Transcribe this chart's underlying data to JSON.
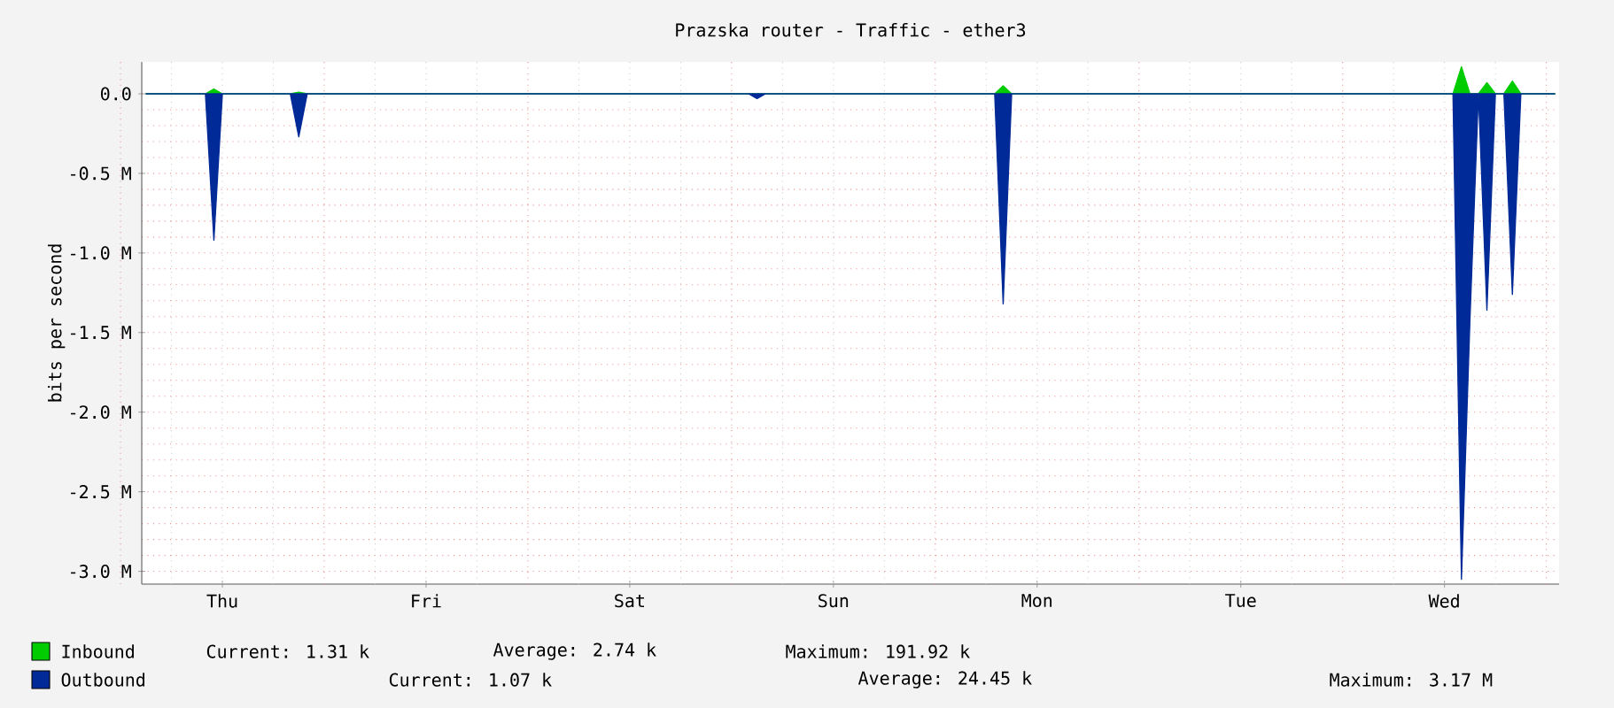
{
  "chart_data": {
    "type": "area",
    "title": "Prazska router - Traffic - ether3",
    "ylabel": "bits per second",
    "categories": [
      null,
      null,
      null,
      null,
      null,
      null,
      null,
      null,
      null,
      "Thu",
      null,
      null,
      null,
      null,
      null,
      null,
      null,
      null,
      null,
      null,
      null,
      null,
      null,
      null,
      null,
      null,
      null,
      null,
      null,
      null,
      null,
      null,
      null,
      "Fri",
      null,
      null,
      null,
      null,
      null,
      null,
      null,
      null,
      null,
      null,
      null,
      null,
      null,
      null,
      null,
      null,
      null,
      null,
      null,
      null,
      null,
      null,
      null,
      "Sat",
      null,
      null,
      null,
      null,
      null,
      null,
      null,
      null,
      null,
      null,
      null,
      null,
      null,
      null,
      null,
      null,
      null,
      null,
      null,
      null,
      null,
      null,
      null,
      "Sun",
      null,
      null,
      null,
      null,
      null,
      null,
      null,
      null,
      null,
      null,
      null,
      null,
      null,
      null,
      null,
      null,
      null,
      null,
      null,
      null,
      null,
      null,
      null,
      "Mon",
      null,
      null,
      null,
      null,
      null,
      null,
      null,
      null,
      null,
      null,
      null,
      null,
      null,
      null,
      null,
      null,
      null,
      null,
      null,
      null,
      null,
      null,
      null,
      "Tue",
      null,
      null,
      null,
      null,
      null,
      null,
      null,
      null,
      null,
      null,
      null,
      null,
      null,
      null,
      null,
      null,
      null,
      null,
      null,
      null,
      null,
      null,
      null,
      "Wed",
      null,
      null,
      null,
      null,
      null,
      null,
      null,
      null,
      null,
      null,
      null,
      null,
      null
    ],
    "ylim": [
      -3080000,
      200000
    ],
    "yticks": [
      {
        "value": 0,
        "label": "0.0"
      },
      {
        "value": -500000,
        "label": "-0.5 M"
      },
      {
        "value": -1000000,
        "label": "-1.0 M"
      },
      {
        "value": -1500000,
        "label": "-1.5 M"
      },
      {
        "value": -2000000,
        "label": "-2.0 M"
      },
      {
        "value": -2500000,
        "label": "-2.5 M"
      },
      {
        "value": -3000000,
        "label": "-3.0 M"
      }
    ],
    "grid": true,
    "legend": "bottom left",
    "series": [
      {
        "name": "Inbound",
        "color": "#00cc00",
        "values": [
          0,
          0,
          0,
          0,
          0,
          0,
          0,
          0,
          30000,
          0,
          0,
          0,
          0,
          0,
          0,
          0,
          0,
          0,
          10000,
          0,
          0,
          0,
          0,
          0,
          0,
          0,
          0,
          0,
          0,
          0,
          0,
          0,
          0,
          0,
          0,
          0,
          0,
          0,
          0,
          0,
          0,
          0,
          0,
          0,
          0,
          0,
          0,
          0,
          0,
          0,
          0,
          0,
          0,
          0,
          0,
          0,
          0,
          0,
          0,
          0,
          0,
          0,
          0,
          0,
          0,
          0,
          0,
          0,
          0,
          0,
          0,
          0,
          0,
          0,
          0,
          0,
          0,
          0,
          0,
          0,
          0,
          0,
          0,
          0,
          0,
          0,
          0,
          0,
          0,
          0,
          0,
          0,
          0,
          0,
          0,
          0,
          0,
          0,
          0,
          0,
          0,
          50000,
          0,
          0,
          0,
          0,
          0,
          0,
          0,
          0,
          0,
          0,
          0,
          0,
          0,
          0,
          0,
          0,
          0,
          0,
          0,
          0,
          0,
          0,
          0,
          0,
          0,
          0,
          0,
          0,
          0,
          0,
          0,
          0,
          0,
          0,
          0,
          0,
          0,
          0,
          0,
          0,
          0,
          0,
          0,
          0,
          0,
          0,
          0,
          0,
          0,
          0,
          0,
          0,
          0,
          170000,
          0,
          0,
          70000,
          0,
          0,
          80000,
          0,
          0,
          0,
          0,
          0
        ]
      },
      {
        "name": "Outbound",
        "color": "#002a97",
        "values": [
          0,
          0,
          0,
          0,
          0,
          0,
          0,
          0,
          -920000,
          0,
          0,
          0,
          0,
          0,
          0,
          0,
          0,
          0,
          -270000,
          0,
          0,
          0,
          0,
          0,
          0,
          0,
          0,
          0,
          0,
          0,
          0,
          0,
          0,
          0,
          0,
          0,
          0,
          0,
          0,
          0,
          0,
          0,
          0,
          0,
          0,
          0,
          0,
          0,
          0,
          0,
          0,
          0,
          0,
          0,
          0,
          0,
          0,
          0,
          0,
          0,
          0,
          0,
          0,
          0,
          0,
          0,
          0,
          0,
          0,
          0,
          0,
          0,
          -30000,
          0,
          0,
          0,
          0,
          0,
          0,
          0,
          0,
          0,
          0,
          0,
          0,
          0,
          0,
          0,
          0,
          0,
          0,
          0,
          0,
          0,
          0,
          0,
          0,
          0,
          0,
          0,
          0,
          -1320000,
          0,
          0,
          0,
          0,
          0,
          0,
          0,
          0,
          0,
          0,
          0,
          0,
          0,
          0,
          0,
          0,
          0,
          0,
          0,
          0,
          0,
          0,
          0,
          0,
          0,
          0,
          0,
          0,
          0,
          0,
          0,
          0,
          0,
          0,
          0,
          0,
          0,
          0,
          0,
          0,
          0,
          0,
          0,
          0,
          0,
          0,
          0,
          0,
          0,
          0,
          0,
          0,
          0,
          -3050000,
          -1420000,
          0,
          -1360000,
          0,
          0,
          -1260000,
          0,
          0,
          0,
          0,
          0
        ]
      }
    ],
    "annotations": [
      "Current: 1.31 k",
      "Average: 2.74 k",
      "Maximum: 191.92 k",
      "Current: 1.07 k",
      "Average: 24.45 k",
      "Maximum: 3.17 M"
    ]
  }
}
